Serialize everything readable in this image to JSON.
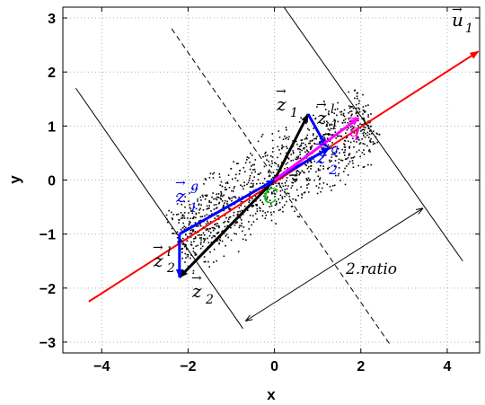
{
  "chart_data": {
    "type": "scatter",
    "title": "",
    "xlabel": "x",
    "ylabel": "y",
    "xlim": [
      -4.9,
      4.75
    ],
    "ylim": [
      -3.2,
      3.2
    ],
    "xticks": [
      -4,
      -2,
      0,
      2,
      4
    ],
    "yticks": [
      -3,
      -2,
      -1,
      0,
      1,
      2,
      3
    ],
    "xtick_labels": [
      "−4",
      "−2",
      "0",
      "2",
      "4"
    ],
    "ytick_labels": [
      "−3",
      "−2",
      "−1",
      "0",
      "1",
      "2",
      "3"
    ],
    "grid": true,
    "points": {
      "count": 1200,
      "center": [
        0,
        0
      ],
      "direction": [
        0.89,
        0.45
      ],
      "spread_major": 1.9,
      "spread_minor": 0.42,
      "color": "#000000"
    },
    "lines": [
      {
        "label": "u1-axis",
        "from": [
          -4.3,
          -2.25
        ],
        "to": [
          4.72,
          2.38
        ],
        "color": "#ff0000",
        "style": "solid"
      },
      {
        "label": "boundary-left",
        "from": [
          -4.6,
          1.7
        ],
        "to": [
          -0.73,
          -2.75
        ],
        "color": "#000000",
        "style": "solid"
      },
      {
        "label": "boundary-middle",
        "from": [
          -2.38,
          2.8
        ],
        "to": [
          2.68,
          -3.05
        ],
        "color": "#000000",
        "style": "dashed"
      },
      {
        "label": "boundary-right",
        "from": [
          0.22,
          3.2
        ],
        "to": [
          4.36,
          -1.5
        ],
        "color": "#000000",
        "style": "solid"
      },
      {
        "label": "ratio-dimension",
        "from": [
          -0.67,
          -2.61
        ],
        "to": [
          3.44,
          -0.52
        ],
        "color": "#000000",
        "style": "double-arrow"
      }
    ],
    "vectors": [
      {
        "label": "z1",
        "from": [
          0,
          0
        ],
        "to": [
          0.78,
          1.22
        ],
        "color": "#000000"
      },
      {
        "label": "z2",
        "from": [
          0,
          0
        ],
        "to": [
          -2.2,
          -1.8
        ],
        "color": "#000000"
      },
      {
        "label": "z1g",
        "from": [
          -2.2,
          -1.0
        ],
        "to": [
          0,
          0
        ],
        "color": "#0000ff"
      },
      {
        "label": "z1l",
        "from": [
          0.78,
          1.22
        ],
        "to": [
          1.2,
          0.62
        ],
        "color": "#0000ff"
      },
      {
        "label": "z2g",
        "from": [
          -0.05,
          -0.02
        ],
        "to": [
          1.28,
          0.6
        ],
        "color": "#0000ff"
      },
      {
        "label": "z2l",
        "from": [
          -2.2,
          -1.0
        ],
        "to": [
          -2.2,
          -1.8
        ],
        "color": "#0000ff"
      },
      {
        "label": "q",
        "from": [
          0,
          0
        ],
        "to": [
          1.95,
          1.15
        ],
        "color": "#ff00ff"
      }
    ],
    "annotations": {
      "u1": "u",
      "u1_sub": "1",
      "z1": "z",
      "z1_sub": "1",
      "z2": "z",
      "z2_sub": "2",
      "z1l": "z",
      "z1l_sub": "1",
      "z1l_sup": "l",
      "z2l": "z",
      "z2l_sub": "2",
      "z2l_sup": "l",
      "z1g": "z",
      "z1g_sub": "1",
      "z1g_sup": "g",
      "z2g": "z",
      "z2g_sub": "2",
      "z2g_sup": "g",
      "q": "q",
      "c": "C",
      "ratio": "2.ratio"
    },
    "colors": {
      "points": "#000000",
      "u1_axis": "#ff0000",
      "vectors_black": "#000000",
      "vectors_blue": "#0000ff",
      "vector_magenta": "#ff00ff",
      "center_label": "#00cc00"
    }
  }
}
